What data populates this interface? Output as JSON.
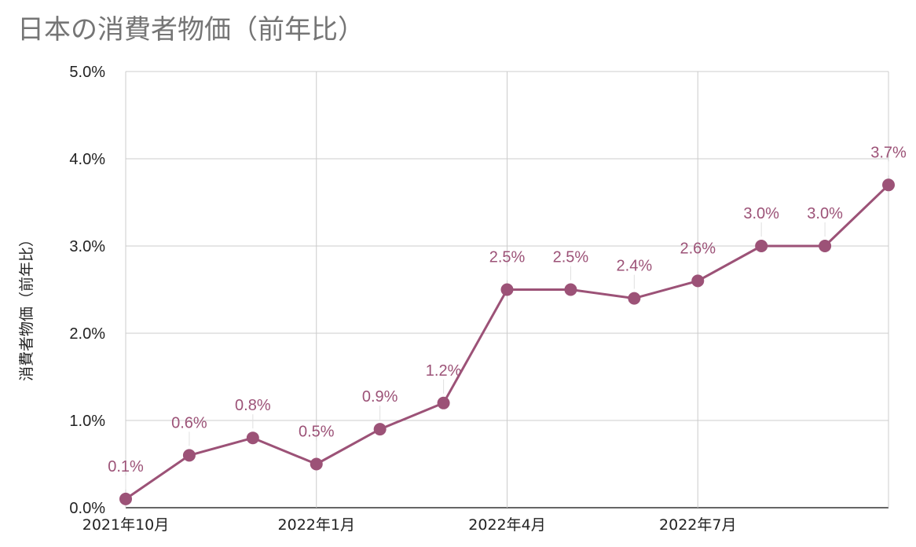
{
  "chart_data": {
    "type": "line",
    "title": "日本の消費者物価（前年比）",
    "ylabel": "消費者物価（前年比）",
    "xlabel": "",
    "ylim": [
      0,
      5
    ],
    "yticks": [
      0,
      1,
      2,
      3,
      4,
      5
    ],
    "ytick_labels": [
      "0.0%",
      "1.0%",
      "2.0%",
      "3.0%",
      "4.0%",
      "5.0%"
    ],
    "x": [
      "2021年10月",
      "2021年11月",
      "2021年12月",
      "2022年1月",
      "2022年2月",
      "2022年3月",
      "2022年4月",
      "2022年5月",
      "2022年6月",
      "2022年7月",
      "2022年8月",
      "2022年9月",
      "2022年10月"
    ],
    "xtick_labels": [
      {
        "index": 0,
        "label": "2021年10月"
      },
      {
        "index": 3,
        "label": "2022年1月"
      },
      {
        "index": 6,
        "label": "2022年4月"
      },
      {
        "index": 9,
        "label": "2022年7月"
      }
    ],
    "series": [
      {
        "values": [
          0.1,
          0.6,
          0.8,
          0.5,
          0.9,
          1.2,
          2.5,
          2.5,
          2.4,
          2.6,
          3.0,
          3.0,
          3.7
        ],
        "labels": [
          "0.1%",
          "0.6%",
          "0.8%",
          "0.5%",
          "0.9%",
          "1.2%",
          "2.5%",
          "2.5%",
          "2.4%",
          "2.6%",
          "3.0%",
          "3.0%",
          "3.7%"
        ]
      }
    ],
    "grid": true,
    "legend": "none",
    "colors": {
      "line": "#9c5277",
      "grid": "#cccccc",
      "baseline": "#333333"
    }
  }
}
